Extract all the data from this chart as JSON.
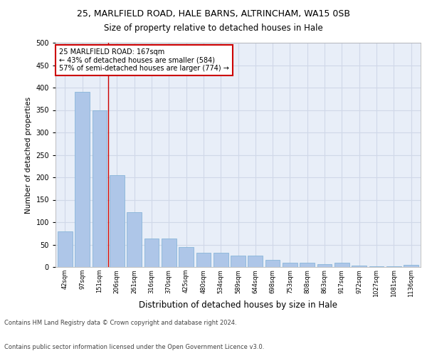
{
  "title1": "25, MARLFIELD ROAD, HALE BARNS, ALTRINCHAM, WA15 0SB",
  "title2": "Size of property relative to detached houses in Hale",
  "xlabel": "Distribution of detached houses by size in Hale",
  "ylabel": "Number of detached properties",
  "categories": [
    "42sqm",
    "97sqm",
    "151sqm",
    "206sqm",
    "261sqm",
    "316sqm",
    "370sqm",
    "425sqm",
    "480sqm",
    "534sqm",
    "589sqm",
    "644sqm",
    "698sqm",
    "753sqm",
    "808sqm",
    "863sqm",
    "917sqm",
    "972sqm",
    "1027sqm",
    "1081sqm",
    "1136sqm"
  ],
  "values": [
    80,
    390,
    350,
    204,
    122,
    63,
    63,
    44,
    32,
    31,
    25,
    25,
    16,
    9,
    9,
    7,
    10,
    3,
    2,
    2,
    4
  ],
  "bar_color": "#aec6e8",
  "bar_edge_color": "#7bafd4",
  "vline_x_index": 2.5,
  "vline_color": "#cc0000",
  "annotation_text": "25 MARLFIELD ROAD: 167sqm\n← 43% of detached houses are smaller (584)\n57% of semi-detached houses are larger (774) →",
  "annotation_box_color": "white",
  "annotation_box_edge_color": "#cc0000",
  "ylim": [
    0,
    500
  ],
  "yticks": [
    0,
    50,
    100,
    150,
    200,
    250,
    300,
    350,
    400,
    450,
    500
  ],
  "grid_color": "#d0d8e8",
  "background_color": "#e8eef8",
  "footer_line1": "Contains HM Land Registry data © Crown copyright and database right 2024.",
  "footer_line2": "Contains public sector information licensed under the Open Government Licence v3.0."
}
